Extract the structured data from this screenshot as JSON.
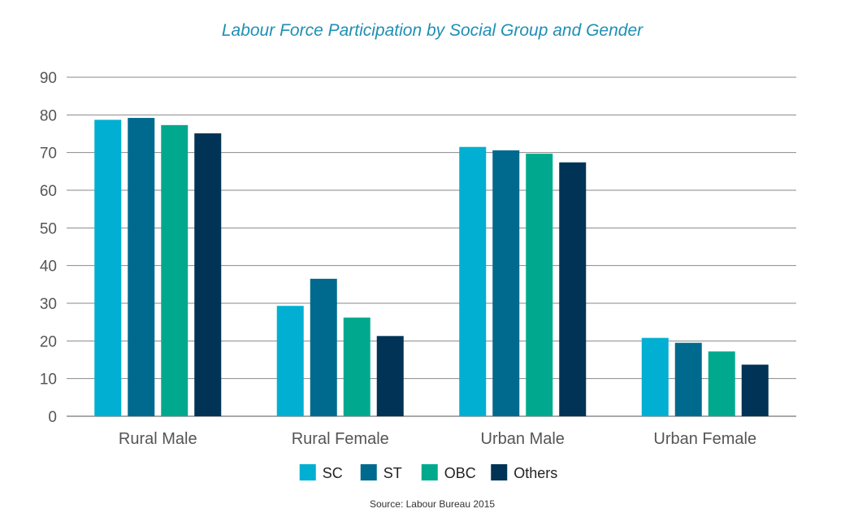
{
  "chart_data": {
    "type": "bar",
    "title": "Labour Force Participation by Social Group and Gender",
    "categories": [
      "Rural Male",
      "Rural Female",
      "Urban Male",
      "Urban Female"
    ],
    "series": [
      {
        "name": "SC",
        "color": "#00afd1",
        "values": [
          78.7,
          29.3,
          71.5,
          20.8
        ]
      },
      {
        "name": "ST",
        "color": "#006a8e",
        "values": [
          79.2,
          36.5,
          70.6,
          19.5
        ]
      },
      {
        "name": "OBC",
        "color": "#00a98e",
        "values": [
          77.3,
          26.2,
          69.7,
          17.2
        ]
      },
      {
        "name": "Others",
        "color": "#003355",
        "values": [
          75.1,
          21.3,
          67.4,
          13.7
        ]
      }
    ],
    "yticks": [
      0,
      10,
      20,
      30,
      40,
      50,
      60,
      70,
      80,
      90
    ],
    "ylim": [
      0,
      90
    ],
    "grid": true,
    "legend_position": "bottom"
  },
  "source": "Source: Labour Bureau 2015"
}
